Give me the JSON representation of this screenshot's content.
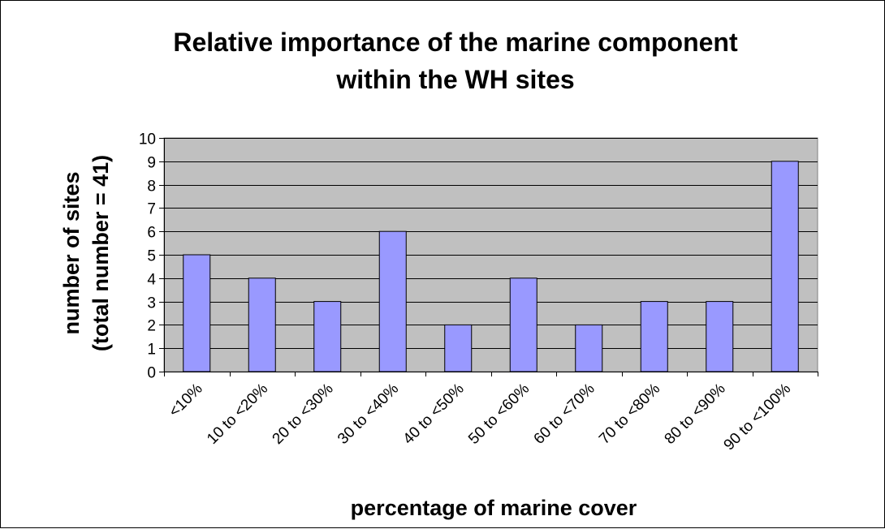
{
  "chart_data": {
    "type": "bar",
    "title_lines": [
      "Relative importance of the marine component",
      "within the WH sites"
    ],
    "xlabel": "percentage of marine cover",
    "ylabel_lines": [
      "number of sites",
      "(total number = 41)"
    ],
    "categories": [
      "<10%",
      "10 to <20%",
      "20 to <30%",
      "30 to <40%",
      "40 to <50%",
      "50 to <60%",
      "60 to <70%",
      "70 to <80%",
      "80 to <90%",
      "90 to <100%"
    ],
    "values": [
      5,
      4,
      3,
      6,
      2,
      4,
      2,
      3,
      3,
      9
    ],
    "ylim": [
      0,
      10
    ],
    "yticks": [
      "0",
      "1",
      "2",
      "3",
      "4",
      "5",
      "6",
      "7",
      "8",
      "9",
      "10"
    ],
    "grid": true,
    "colors": {
      "bar_fill": "#9999ff",
      "plot_background": "#c0c0c0",
      "gridline": "#000000"
    }
  }
}
